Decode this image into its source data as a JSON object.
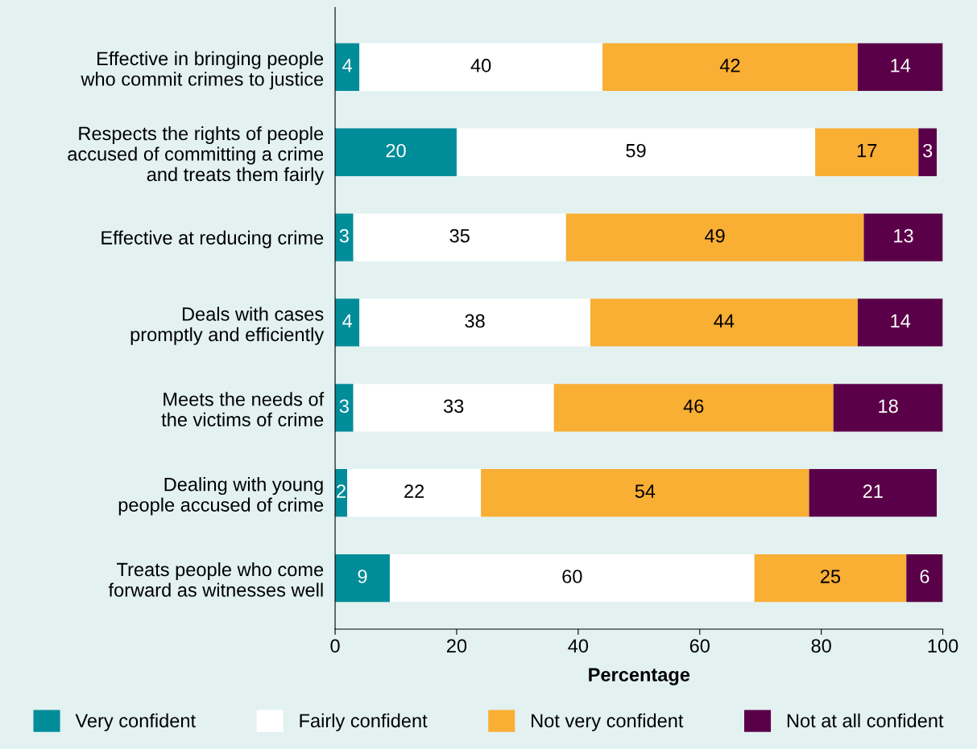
{
  "chart_data": {
    "type": "bar",
    "orientation": "horizontal",
    "stacked": true,
    "data_labels": true,
    "xlabel": "Percentage",
    "xlim": [
      0,
      100
    ],
    "xticks": [
      0,
      20,
      40,
      60,
      80,
      100
    ],
    "grid": false,
    "legend": "bottom",
    "categories": [
      "Effective in bringing people\nwho commit crimes to justice",
      "Respects the rights of people\naccused of committing a crime\nand treats them fairly",
      "Effective at reducing crime",
      "Deals with cases\npromptly and efficiently",
      "Meets the needs of\nthe victims of crime",
      "Dealing with young\npeople accused of crime",
      "Treats people who come\nforward as witnesses well"
    ],
    "series": [
      {
        "name": "Very confident",
        "color": "#008c99",
        "values": [
          4,
          20,
          3,
          4,
          3,
          2,
          9
        ]
      },
      {
        "name": "Fairly confident",
        "color": "#ffffff",
        "values": [
          40,
          59,
          35,
          38,
          33,
          22,
          60
        ]
      },
      {
        "name": "Not very confident",
        "color": "#f9ae34",
        "values": [
          42,
          17,
          49,
          44,
          46,
          54,
          25
        ]
      },
      {
        "name": "Not at all confident",
        "color": "#5a0048",
        "values": [
          14,
          3,
          13,
          14,
          18,
          21,
          6
        ]
      }
    ]
  }
}
